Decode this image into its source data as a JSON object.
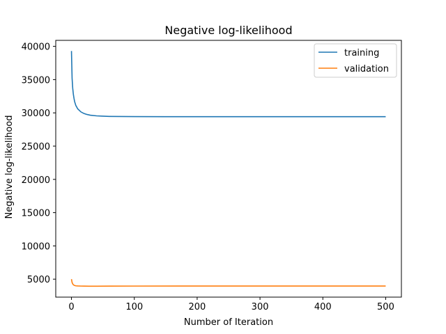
{
  "chart_data": {
    "type": "line",
    "title": "Negative log-likelihood",
    "xlabel": "Number of Iteration",
    "ylabel": "Negative log-likelihood",
    "xlim": [
      -25,
      525
    ],
    "ylim": [
      2300,
      40900
    ],
    "xticks": [
      0,
      100,
      200,
      300,
      400,
      500
    ],
    "yticks": [
      5000,
      10000,
      15000,
      20000,
      25000,
      30000,
      35000,
      40000
    ],
    "grid": false,
    "legend_position": "upper right",
    "series": [
      {
        "name": "training",
        "color": "#1f77b4",
        "x": [
          0,
          1,
          2,
          3,
          4,
          5,
          7,
          10,
          15,
          20,
          25,
          30,
          40,
          50,
          60,
          80,
          100,
          150,
          200,
          300,
          400,
          500
        ],
        "y": [
          39300,
          35200,
          33700,
          32800,
          32200,
          31700,
          31100,
          30600,
          30150,
          29900,
          29750,
          29650,
          29550,
          29500,
          29470,
          29450,
          29440,
          29430,
          29430,
          29430,
          29430,
          29430
        ]
      },
      {
        "name": "validation",
        "color": "#ff7f0e",
        "x": [
          0,
          1,
          2,
          3,
          5,
          7,
          10,
          15,
          20,
          30,
          40,
          60,
          100,
          200,
          300,
          400,
          500
        ],
        "y": [
          5000,
          4500,
          4300,
          4150,
          4050,
          4000,
          3980,
          3960,
          3950,
          3940,
          3945,
          3955,
          3960,
          3965,
          3965,
          3965,
          3965
        ]
      }
    ]
  }
}
